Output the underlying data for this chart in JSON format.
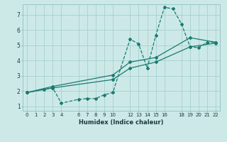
{
  "xlabel": "Humidex (Indice chaleur)",
  "ylabel": "",
  "bg_color": "#cce9e8",
  "grid_color": "#aad4d2",
  "line_color": "#1a7a6e",
  "xlim": [
    -0.5,
    22.5
  ],
  "ylim": [
    0.7,
    7.7
  ],
  "xticks": [
    0,
    1,
    2,
    3,
    4,
    6,
    7,
    8,
    9,
    10,
    12,
    13,
    14,
    15,
    16,
    18,
    19,
    20,
    21,
    22
  ],
  "yticks": [
    1,
    2,
    3,
    4,
    5,
    6,
    7
  ],
  "series": [
    {
      "x": [
        0,
        2,
        3,
        4,
        6,
        7,
        8,
        9,
        10,
        12,
        13,
        14,
        15,
        16,
        17,
        18,
        19,
        20,
        21,
        22
      ],
      "y": [
        1.9,
        2.1,
        2.2,
        1.2,
        1.45,
        1.5,
        1.5,
        1.75,
        1.9,
        5.4,
        5.1,
        3.5,
        5.65,
        7.5,
        7.4,
        6.4,
        4.9,
        4.85,
        5.2,
        5.2
      ],
      "linestyle": "--",
      "marker": "D",
      "markersize": 2.0,
      "linewidth": 0.9
    },
    {
      "x": [
        0,
        3,
        10,
        12,
        15,
        19,
        22
      ],
      "y": [
        1.9,
        2.3,
        3.05,
        3.9,
        4.2,
        5.5,
        5.2
      ],
      "linestyle": "-",
      "marker": "D",
      "markersize": 2.0,
      "linewidth": 0.9
    },
    {
      "x": [
        0,
        3,
        10,
        12,
        15,
        19,
        22
      ],
      "y": [
        1.9,
        2.2,
        2.75,
        3.5,
        3.9,
        4.9,
        5.15
      ],
      "linestyle": "-",
      "marker": "D",
      "markersize": 2.0,
      "linewidth": 0.9
    }
  ]
}
